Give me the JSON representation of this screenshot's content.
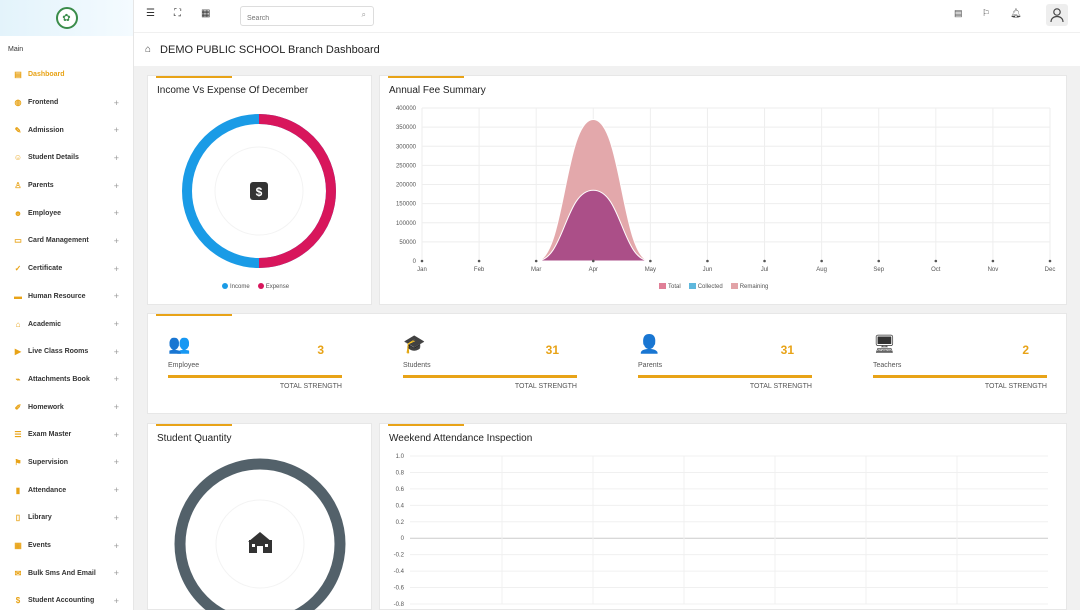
{
  "sidebar": {
    "section_label": "Main",
    "items": [
      {
        "label": "Dashboard",
        "icon": "dashboard-icon",
        "glyph": "▤",
        "active": true
      },
      {
        "label": "Frontend",
        "icon": "globe-icon",
        "glyph": "◍"
      },
      {
        "label": "Admission",
        "icon": "edit-icon",
        "glyph": "✎"
      },
      {
        "label": "Student Details",
        "icon": "student-icon",
        "glyph": "☺"
      },
      {
        "label": "Parents",
        "icon": "user-icon",
        "glyph": "♙"
      },
      {
        "label": "Employee",
        "icon": "users-icon",
        "glyph": "☻"
      },
      {
        "label": "Card Management",
        "icon": "id-card-icon",
        "glyph": "▭"
      },
      {
        "label": "Certificate",
        "icon": "certificate-icon",
        "glyph": "✓"
      },
      {
        "label": "Human Resource",
        "icon": "hr-icon",
        "glyph": "▬"
      },
      {
        "label": "Academic",
        "icon": "academic-icon",
        "glyph": "⌂"
      },
      {
        "label": "Live Class Rooms",
        "icon": "video-icon",
        "glyph": "▶"
      },
      {
        "label": "Attachments Book",
        "icon": "attachment-icon",
        "glyph": "⌁"
      },
      {
        "label": "Homework",
        "icon": "homework-icon",
        "glyph": "✐"
      },
      {
        "label": "Exam Master",
        "icon": "exam-icon",
        "glyph": "☰"
      },
      {
        "label": "Supervision",
        "icon": "supervision-icon",
        "glyph": "⚑"
      },
      {
        "label": "Attendance",
        "icon": "attendance-icon",
        "glyph": "▮"
      },
      {
        "label": "Library",
        "icon": "book-icon",
        "glyph": "▯"
      },
      {
        "label": "Events",
        "icon": "calendar-icon",
        "glyph": "▦"
      },
      {
        "label": "Bulk Sms And Email",
        "icon": "sms-icon",
        "glyph": "✉"
      },
      {
        "label": "Student Accounting",
        "icon": "accounting-icon",
        "glyph": "$"
      }
    ]
  },
  "topbar": {
    "search_placeholder": "Search"
  },
  "page": {
    "title": "DEMO PUBLIC SCHOOL Branch Dashboard"
  },
  "income_expense": {
    "title": "Income Vs Expense Of December",
    "legend": [
      {
        "label": "Income",
        "color": "#1a9be6"
      },
      {
        "label": "Expense",
        "color": "#d8165c"
      }
    ],
    "center_icon": "dollar-icon"
  },
  "stats": [
    {
      "label": "Employee",
      "value": "3",
      "sub": "TOTAL STRENGTH",
      "icon": "users-icon",
      "glyph": "👥"
    },
    {
      "label": "Students",
      "value": "31",
      "sub": "TOTAL STRENGTH",
      "icon": "graduate-icon",
      "glyph": "🎓"
    },
    {
      "label": "Parents",
      "value": "31",
      "sub": "TOTAL STRENGTH",
      "icon": "user-tie-icon",
      "glyph": "👤"
    },
    {
      "label": "Teachers",
      "value": "2",
      "sub": "TOTAL STRENGTH",
      "icon": "chalkboard-teacher-icon",
      "glyph": "🖥"
    }
  ],
  "student_quantity": {
    "title": "Student Quantity",
    "center_icon": "school-icon"
  },
  "colors": {
    "accent": "#e8a317",
    "income": "#1a9be6",
    "expense": "#d8165c",
    "total": "#e07f97",
    "collected": "#5fb8dd",
    "remaining": "#e2a3a7",
    "student_ring": "#53616a"
  },
  "chart_data": [
    {
      "type": "area",
      "title": "Annual Fee Summary",
      "x": [
        "Jan",
        "Feb",
        "Mar",
        "Apr",
        "May",
        "Jun",
        "Jul",
        "Aug",
        "Sep",
        "Oct",
        "Nov",
        "Dec"
      ],
      "series": [
        {
          "name": "Total",
          "values": [
            0,
            0,
            0,
            370000,
            0,
            0,
            0,
            0,
            0,
            0,
            0,
            0
          ],
          "color": "#e07f97"
        },
        {
          "name": "Collected",
          "values": [
            0,
            0,
            0,
            185000,
            0,
            0,
            0,
            0,
            0,
            0,
            0,
            0
          ],
          "color": "#5fb8dd"
        },
        {
          "name": "Remaining",
          "values": [
            0,
            0,
            0,
            185000,
            0,
            0,
            0,
            0,
            0,
            0,
            0,
            0
          ],
          "color": "#e2a3a7"
        }
      ],
      "yticks": [
        "0",
        "50000",
        "100000",
        "150000",
        "200000",
        "250000",
        "300000",
        "350000",
        "400000"
      ],
      "ylim": [
        0,
        400000
      ],
      "grid": true,
      "legend_position": "bottom"
    },
    {
      "type": "line",
      "title": "Weekend Attendance Inspection",
      "yticks": [
        "1.0",
        "0.8",
        "0.6",
        "0.4",
        "0.2",
        "0",
        "-0.2",
        "-0.4",
        "-0.6",
        "-0.8"
      ],
      "ylim": [
        -1,
        1
      ],
      "series": [],
      "grid": true
    }
  ]
}
